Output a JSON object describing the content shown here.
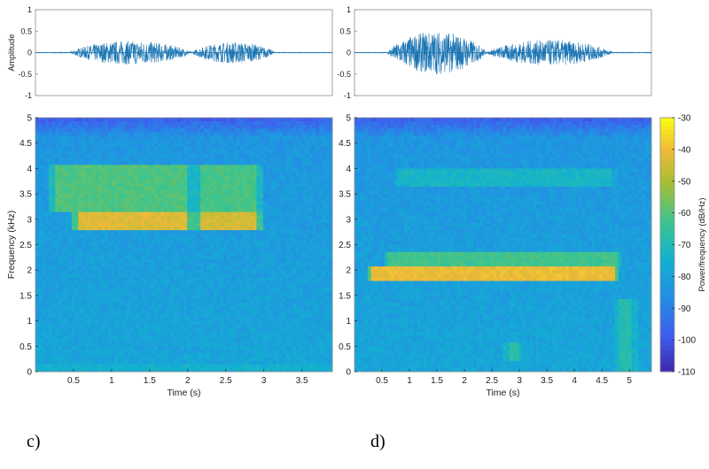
{
  "chart_data": [
    {
      "type": "line",
      "panel": "c-waveform",
      "ylabel": "Amplitude",
      "xlim": [
        0,
        3.9
      ],
      "ylim": [
        -1,
        1
      ],
      "yticks": [
        "1",
        "0.5",
        "0",
        "-0.5",
        "-1"
      ],
      "series": [
        {
          "name": "waveform",
          "segments": [
            {
              "t0": 0.45,
              "t1": 2.05,
              "peak": 0.28
            },
            {
              "t0": 2.05,
              "t1": 3.15,
              "peak": 0.25
            }
          ]
        }
      ]
    },
    {
      "type": "line",
      "panel": "d-waveform",
      "xlim": [
        0,
        5.4
      ],
      "ylim": [
        -1,
        1
      ],
      "yticks": [
        "1",
        "0.5",
        "0",
        "-0.5",
        "-1"
      ],
      "series": [
        {
          "name": "waveform",
          "segments": [
            {
              "t0": 0.6,
              "t1": 2.4,
              "peak": 0.5
            },
            {
              "t0": 2.4,
              "t1": 4.7,
              "peak": 0.3
            }
          ]
        }
      ]
    },
    {
      "type": "heatmap",
      "panel": "c-spectrogram",
      "xlabel": "Time (s)",
      "ylabel": "Frequency (kHz)",
      "xlim": [
        0,
        3.9
      ],
      "ylim": [
        0,
        5
      ],
      "xticks": [
        "0.5",
        "1",
        "1.5",
        "2",
        "2.5",
        "3",
        "3.5"
      ],
      "yticks": [
        "5",
        "4.5",
        "4",
        "3.5",
        "3",
        "2.5",
        "2",
        "1.5",
        "1",
        "0.5",
        "0"
      ],
      "bands": [
        {
          "t0": 0.55,
          "t1": 2.0,
          "f0": 2.8,
          "f1": 3.15,
          "level": -42
        },
        {
          "t0": 2.15,
          "t1": 2.9,
          "f0": 2.8,
          "f1": 3.15,
          "level": -44
        },
        {
          "t0": 0.25,
          "t1": 2.0,
          "f0": 3.15,
          "f1": 4.1,
          "level": -60
        },
        {
          "t0": 2.15,
          "t1": 2.9,
          "f0": 3.15,
          "f1": 4.1,
          "level": -61
        },
        {
          "t0": 0.0,
          "t1": 3.9,
          "f0": 0.0,
          "f1": 0.15,
          "level": -74
        }
      ]
    },
    {
      "type": "heatmap",
      "panel": "d-spectrogram",
      "xlabel": "Time (s)",
      "xlim": [
        0,
        5.4
      ],
      "ylim": [
        0,
        5
      ],
      "xticks": [
        "0.5",
        "1",
        "1.5",
        "2",
        "2.5",
        "3",
        "3.5",
        "4",
        "4.5",
        "5"
      ],
      "yticks": [
        "5",
        "4.5",
        "4",
        "3.5",
        "3",
        "2.5",
        "2",
        "1.5",
        "1",
        "0.5",
        "0"
      ],
      "bands": [
        {
          "t0": 0.3,
          "t1": 4.75,
          "f0": 1.78,
          "f1": 2.05,
          "level": -40
        },
        {
          "t0": 0.6,
          "t1": 4.8,
          "f0": 2.05,
          "f1": 2.35,
          "level": -62
        },
        {
          "t0": 0.8,
          "t1": 4.7,
          "f0": 3.65,
          "f1": 4.0,
          "level": -72
        },
        {
          "t0": 2.8,
          "t1": 3.0,
          "f0": 0.2,
          "f1": 0.6,
          "level": -66
        },
        {
          "t0": 4.8,
          "t1": 5.05,
          "f0": 0.0,
          "f1": 1.4,
          "level": -68
        }
      ]
    },
    {
      "type": "colorbar",
      "panel": "colorbar",
      "label": "Power/frequency (dB/Hz)",
      "range": [
        -110,
        -30
      ],
      "ticks": [
        "-30",
        "-40",
        "-50",
        "-60",
        "-70",
        "-80",
        "-90",
        "-100",
        "-110"
      ]
    }
  ],
  "labels": {
    "c": "c)",
    "d": "d)"
  }
}
